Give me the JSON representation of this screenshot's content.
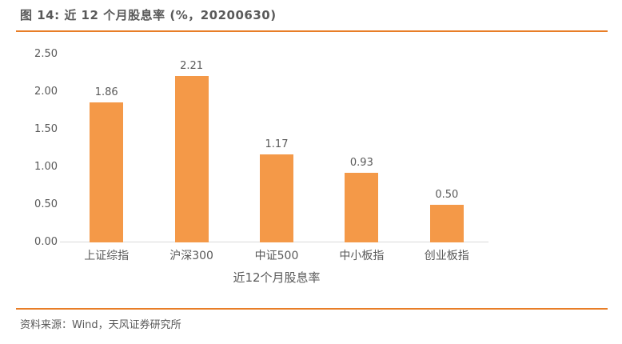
{
  "header": {
    "title": "图 14: 近 12 个月股息率 (%，20200630)"
  },
  "chart_data": {
    "type": "bar",
    "categories": [
      "上证综指",
      "沪深300",
      "中证500",
      "中小板指",
      "创业板指"
    ],
    "values": [
      1.86,
      2.21,
      1.17,
      0.93,
      0.5
    ],
    "value_labels": [
      "1.86",
      "2.21",
      "1.17",
      "0.93",
      "0.50"
    ],
    "title": "图 14: 近 12 个月股息率 (%，20200630)",
    "xlabel": "近12个月股息率",
    "ylabel": "",
    "ylim": [
      0,
      2.5
    ],
    "yticks": [
      "0.00",
      "0.50",
      "1.00",
      "1.50",
      "2.00",
      "2.50"
    ],
    "grid": false,
    "legend": false,
    "bar_color": "#F49948"
  },
  "footer": {
    "source": "资料来源：Wind，天风证券研究所"
  },
  "colors": {
    "accent_orange": "#E87E27",
    "bar_orange": "#F49948",
    "text_gray": "#595959",
    "axis_line_gray": "#D9D9D9"
  }
}
